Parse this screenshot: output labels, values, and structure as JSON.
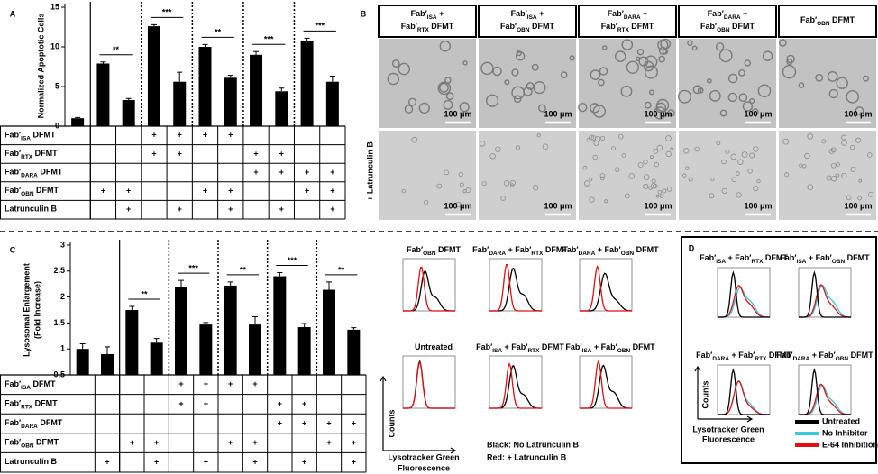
{
  "chart_data": [
    {
      "type": "bar",
      "panel": "A",
      "ylabel": [
        "Normalized Apoptotic Cells"
      ],
      "color": "#000000",
      "values": [
        1.0,
        7.9,
        3.3,
        12.6,
        5.6,
        10.0,
        6.1,
        9.0,
        4.4,
        10.8,
        5.6
      ],
      "errors": [
        0.1,
        0.2,
        0.2,
        0.2,
        1.2,
        0.3,
        0.3,
        0.4,
        0.4,
        0.3,
        0.7
      ],
      "ylim": [
        0,
        15
      ],
      "yticks": [
        0,
        5,
        10,
        15
      ],
      "annotations": [
        {
          "text": "**",
          "from": 1,
          "to": 2
        },
        {
          "text": "***",
          "from": 3,
          "to": 4
        },
        {
          "text": "**",
          "from": 5,
          "to": 6
        },
        {
          "text": "***",
          "from": 7,
          "to": 8
        },
        {
          "text": "***",
          "from": 9,
          "to": 10
        }
      ],
      "table": {
        "rows": [
          {
            "label": [
              {
                "text": "Fab′"
              },
              {
                "text": "ISA",
                "sub": true
              },
              {
                "text": " DFMT"
              }
            ],
            "cells": [
              null,
              null,
              null,
              "+",
              "+",
              "+",
              "+",
              null,
              null,
              null,
              null
            ]
          },
          {
            "label": [
              {
                "text": "Fab′"
              },
              {
                "text": "RTX",
                "sub": true
              },
              {
                "text": " DFMT"
              }
            ],
            "cells": [
              null,
              null,
              null,
              "+",
              "+",
              null,
              null,
              "+",
              "+",
              null,
              null
            ]
          },
          {
            "label": [
              {
                "text": "Fab′"
              },
              {
                "text": "DARA",
                "sub": true
              },
              {
                "text": " DFMT"
              }
            ],
            "cells": [
              null,
              null,
              null,
              null,
              null,
              null,
              null,
              "+",
              "+",
              "+",
              "+"
            ]
          },
          {
            "label": [
              {
                "text": "Fab′"
              },
              {
                "text": "OBN",
                "sub": true
              },
              {
                "text": " DFMT"
              }
            ],
            "cells": [
              null,
              "+",
              "+",
              null,
              null,
              "+",
              "+",
              null,
              null,
              "+",
              "+"
            ]
          },
          {
            "label": [
              {
                "text": "Latrunculin B"
              }
            ],
            "cells": [
              null,
              null,
              "+",
              null,
              "+",
              null,
              "+",
              null,
              "+",
              null,
              "+"
            ]
          }
        ]
      }
    },
    {
      "type": "bar",
      "panel": "C",
      "ylabel": [
        "Lysosomal Enlargement",
        "(Fold Increase)"
      ],
      "color": "#000000",
      "values": [
        1.0,
        0.9,
        1.75,
        1.12,
        2.2,
        1.47,
        2.22,
        1.47,
        2.4,
        1.42,
        2.14,
        1.37
      ],
      "errors": [
        0.1,
        0.14,
        0.07,
        0.08,
        0.12,
        0.04,
        0.07,
        0.15,
        0.07,
        0.07,
        0.15,
        0.04
      ],
      "ylim": [
        0.5,
        3
      ],
      "yticks": [
        0.5,
        1,
        1.5,
        2,
        2.5,
        3
      ],
      "annotations": [
        {
          "text": "**",
          "from": 2,
          "to": 3
        },
        {
          "text": "***",
          "from": 4,
          "to": 5
        },
        {
          "text": "**",
          "from": 6,
          "to": 7
        },
        {
          "text": "***",
          "from": 8,
          "to": 9
        },
        {
          "text": "**",
          "from": 10,
          "to": 11
        }
      ],
      "table": {
        "rows": [
          {
            "label": [
              {
                "text": "Fab′"
              },
              {
                "text": "ISA",
                "sub": true
              },
              {
                "text": " DFMT"
              }
            ],
            "cells": [
              null,
              null,
              null,
              null,
              "+",
              "+",
              "+",
              "+",
              null,
              null,
              null,
              null
            ]
          },
          {
            "label": [
              {
                "text": "Fab′"
              },
              {
                "text": "RTX",
                "sub": true
              },
              {
                "text": " DFMT"
              }
            ],
            "cells": [
              null,
              null,
              null,
              null,
              "+",
              "+",
              null,
              null,
              "+",
              "+",
              null,
              null
            ]
          },
          {
            "label": [
              {
                "text": "Fab′"
              },
              {
                "text": "DARA",
                "sub": true
              },
              {
                "text": " DFMT"
              }
            ],
            "cells": [
              null,
              null,
              null,
              null,
              null,
              null,
              null,
              null,
              "+",
              "+",
              "+",
              "+"
            ]
          },
          {
            "label": [
              {
                "text": "Fab′"
              },
              {
                "text": "OBN",
                "sub": true
              },
              {
                "text": " DFMT"
              }
            ],
            "cells": [
              null,
              null,
              "+",
              "+",
              null,
              null,
              "+",
              "+",
              null,
              null,
              "+",
              "+"
            ]
          },
          {
            "label": [
              {
                "text": "Latrunculin B"
              }
            ],
            "cells": [
              null,
              "+",
              null,
              "+",
              null,
              "+",
              null,
              "+",
              null,
              "+",
              null,
              "+"
            ]
          }
        ]
      }
    }
  ],
  "panel_b": {
    "label": "B",
    "row_label": "+ Latrunculin B",
    "scale_bar": "100 μm",
    "headers": [
      [
        [
          {
            "text": "Fab′"
          },
          {
            "text": "ISA",
            "sub": true
          },
          {
            "text": " +"
          }
        ],
        [
          {
            "text": "Fab′"
          },
          {
            "text": "RTX",
            "sub": true
          },
          {
            "text": " DFMT"
          }
        ]
      ],
      [
        [
          {
            "text": "Fab′"
          },
          {
            "text": "ISA",
            "sub": true
          },
          {
            "text": " +"
          }
        ],
        [
          {
            "text": "Fab′"
          },
          {
            "text": "OBN",
            "sub": true
          },
          {
            "text": " DFMT"
          }
        ]
      ],
      [
        [
          {
            "text": "Fab′"
          },
          {
            "text": "DARA",
            "sub": true
          },
          {
            "text": " +"
          }
        ],
        [
          {
            "text": "Fab′"
          },
          {
            "text": "RTX",
            "sub": true
          },
          {
            "text": " DFMT"
          }
        ]
      ],
      [
        [
          {
            "text": "Fab′"
          },
          {
            "text": "DARA",
            "sub": true
          },
          {
            "text": " +"
          }
        ],
        [
          {
            "text": "Fab′"
          },
          {
            "text": "OBN",
            "sub": true
          },
          {
            "text": " DFMT"
          }
        ]
      ],
      [
        [
          {
            "text": "Fab′"
          },
          {
            "text": "OBN",
            "sub": true
          },
          {
            "text": "  DFMT"
          }
        ]
      ]
    ]
  },
  "flow": {
    "y_label": "Counts",
    "x_label": [
      "Lysotracker Green",
      "Fluorescence"
    ],
    "titles": [
      [
        {
          "text": "Fab′"
        },
        {
          "text": "OBN",
          "sub": true
        },
        {
          "text": " DFMT"
        }
      ],
      [
        {
          "text": "Fab′"
        },
        {
          "text": "DARA",
          "sub": true
        },
        {
          "text": " + Fab′"
        },
        {
          "text": "RTX",
          "sub": true
        },
        {
          "text": " DFMT"
        }
      ],
      [
        {
          "text": "Fab′"
        },
        {
          "text": "DARA",
          "sub": true
        },
        {
          "text": " + Fab′"
        },
        {
          "text": "OBN",
          "sub": true
        },
        {
          "text": " DFMT"
        }
      ],
      [
        {
          "text": "Untreated"
        }
      ],
      [
        {
          "text": "Fab′"
        },
        {
          "text": "ISA",
          "sub": true
        },
        {
          "text": " + Fab′"
        },
        {
          "text": "RTX",
          "sub": true
        },
        {
          "text": " DFMT"
        }
      ],
      [
        {
          "text": "Fab′"
        },
        {
          "text": "ISA",
          "sub": true
        },
        {
          "text": " + Fab′"
        },
        {
          "text": "OBN",
          "sub": true
        },
        {
          "text": " DFMT"
        }
      ]
    ],
    "legend": [
      {
        "text": "Black: No Latrunculin B",
        "color": "#000000"
      },
      {
        "text": "Red: + Latrunculin B",
        "color": "#e01010"
      }
    ]
  },
  "panel_d": {
    "label": "D",
    "y_label": "Counts",
    "x_label": [
      "Lysotracker Green",
      "Fluorescence"
    ],
    "titles": [
      [
        {
          "text": "Fab′"
        },
        {
          "text": "ISA",
          "sub": true
        },
        {
          "text": " + Fab′"
        },
        {
          "text": "RTX",
          "sub": true
        },
        {
          "text": " DFMT"
        }
      ],
      [
        {
          "text": "Fab′"
        },
        {
          "text": "ISA",
          "sub": true
        },
        {
          "text": " + Fab′"
        },
        {
          "text": "OBN",
          "sub": true
        },
        {
          "text": " DFMT"
        }
      ],
      [
        {
          "text": "Fab′"
        },
        {
          "text": "DARA",
          "sub": true
        },
        {
          "text": " + Fab′"
        },
        {
          "text": "RTX",
          "sub": true
        },
        {
          "text": " DFMT"
        }
      ],
      [
        {
          "text": "Fab′"
        },
        {
          "text": "DARA",
          "sub": true
        },
        {
          "text": " + Fab′"
        },
        {
          "text": "OBN",
          "sub": true
        },
        {
          "text": " DFMT"
        }
      ]
    ],
    "legend": [
      {
        "text": "Untreated",
        "color": "#000000"
      },
      {
        "text": "No Inhibitor",
        "color": "#3cc8dc"
      },
      {
        "text": "E-64 Inhibition",
        "color": "#e01010"
      }
    ]
  }
}
